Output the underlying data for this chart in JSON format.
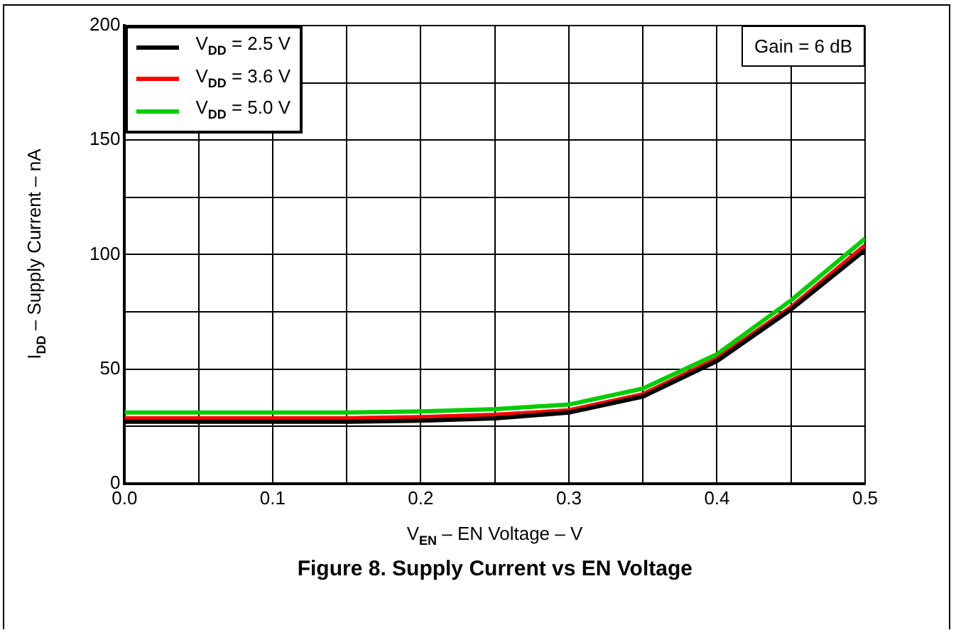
{
  "chart_data": {
    "type": "line",
    "title": "Figure 8. Supply Current vs EN Voltage",
    "xlabel": "V$_{EN}$ – EN Voltage – V",
    "ylabel": "I$_{DD}$ – Supply Current – nA",
    "x": [
      0,
      0.05,
      0.1,
      0.15,
      0.2,
      0.25,
      0.3,
      0.35,
      0.4,
      0.45,
      0.5
    ],
    "series": [
      {
        "name": "V$_{DD}$ = 2.5 V",
        "color": "#000000",
        "values": [
          27,
          27,
          27,
          27,
          27.5,
          28.5,
          31,
          38,
          53.5,
          76,
          102
        ]
      },
      {
        "name": "V$_{DD}$ = 3.6 V",
        "color": "#ff0000",
        "values": [
          28.5,
          28.5,
          28.5,
          28.5,
          29,
          30,
          32,
          39,
          54.5,
          77,
          104
        ]
      },
      {
        "name": "V$_{DD}$ = 5.0 V",
        "color": "#00cc00",
        "values": [
          31,
          31,
          31,
          31,
          31.5,
          32.5,
          34.5,
          41.5,
          56.5,
          80,
          107
        ]
      }
    ],
    "xlim": [
      0,
      0.5
    ],
    "xticks": [
      "0.0",
      {
        "value": 0.05,
        "label": null
      },
      {
        "value": 0.1,
        "label": "0.1"
      },
      {
        "value": 0.15,
        "label": null
      },
      {
        "value": 0.2,
        "label": "0.2"
      },
      {
        "value": 0.25,
        "label": null
      },
      {
        "value": 0.3,
        "label": "0.3"
      },
      {
        "value": 0.35,
        "label": null
      },
      {
        "value": 0.4,
        "label": "0.4"
      },
      {
        "value": 0.45,
        "label": null
      },
      {
        "value": 0.5,
        "label": "0.5"
      }
    ],
    "ylim": [
      0,
      200
    ],
    "yticks": [
      0,
      {
        "value": 25,
        "label": null
      },
      50,
      {
        "value": 75,
        "label": null
      },
      100,
      {
        "value": 125,
        "label": null
      },
      150,
      {
        "value": 175,
        "label": null
      },
      200
    ],
    "grid": true,
    "legend": "top left",
    "line_style": "solid",
    "annotations": [
      "Gain = 6 dB"
    ]
  }
}
